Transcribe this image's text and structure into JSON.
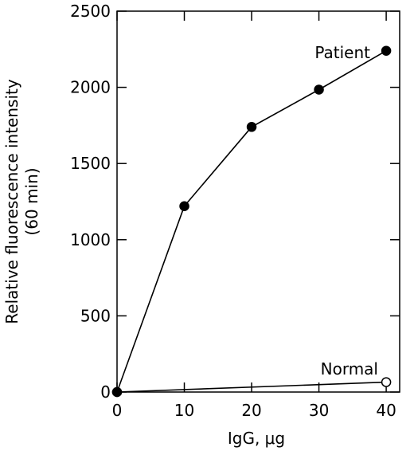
{
  "chart_data": {
    "type": "line",
    "xlabel": "IgG, μg",
    "ylabel_lines": [
      "Relative fluorescence intensity",
      "(60 min)"
    ],
    "xlim": [
      0,
      42
    ],
    "ylim": [
      0,
      2500
    ],
    "xticks": [
      0,
      10,
      20,
      30,
      40
    ],
    "yticks": [
      0,
      500,
      1000,
      1500,
      2000,
      2500
    ],
    "grid": false,
    "legend": "none",
    "series": [
      {
        "name": "Patient",
        "marker": "filled-circle",
        "x": [
          0,
          10,
          20,
          30,
          40
        ],
        "y": [
          0,
          1220,
          1740,
          1985,
          2240
        ]
      },
      {
        "name": "Normal",
        "marker": "mixed",
        "x": [
          0,
          40
        ],
        "y": [
          0,
          65
        ],
        "marker_fill": [
          "filled",
          "open"
        ]
      }
    ]
  }
}
